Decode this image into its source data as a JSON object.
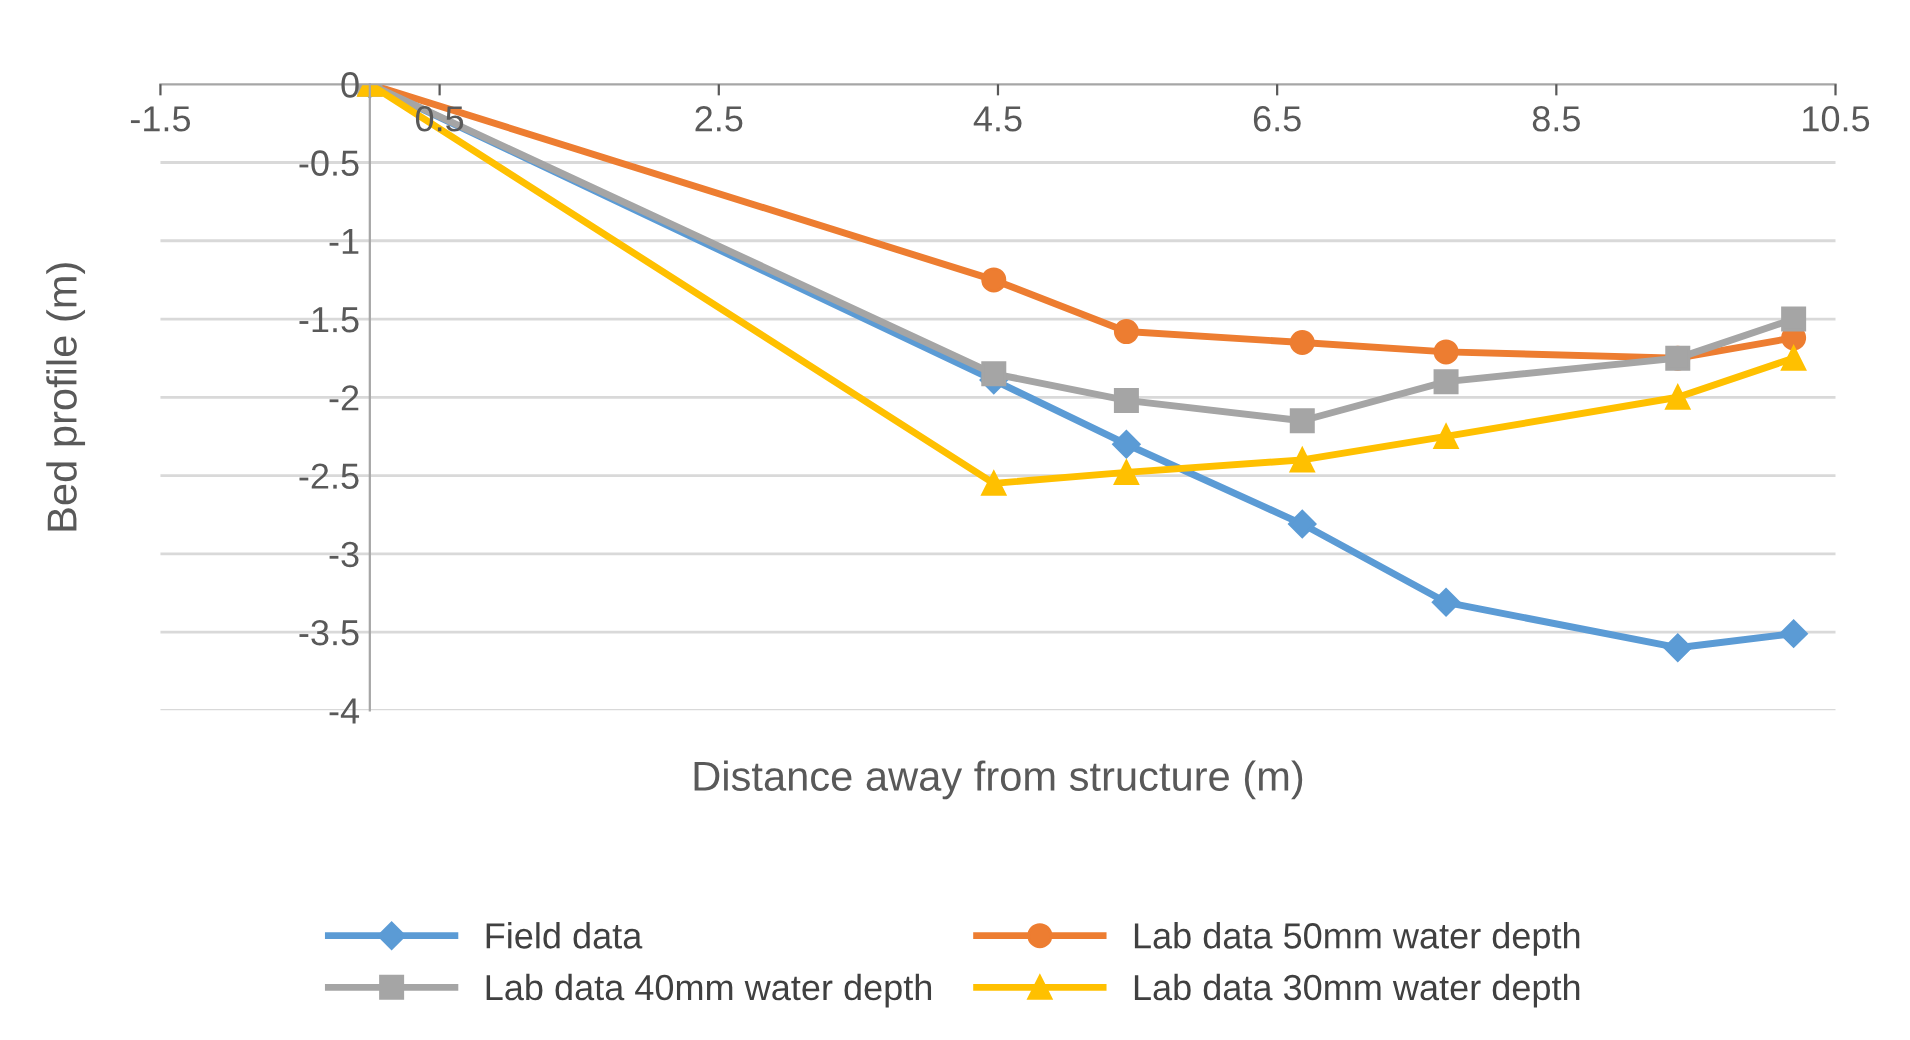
{
  "chart_data": {
    "type": "line",
    "xlabel": "Distance away from structure (m)",
    "ylabel": "Bed profile (m)",
    "xlim": [
      -1.5,
      10.5
    ],
    "xticks": [
      -1.5,
      0.5,
      2.5,
      4.5,
      6.5,
      8.5,
      10.5
    ],
    "ylim": [
      -4,
      0
    ],
    "yticks": [
      0,
      -0.5,
      -1,
      -1.5,
      -2,
      -2.5,
      -3,
      -3.5,
      -4
    ],
    "grid": "y",
    "legend": "bottom",
    "line_style": "solid",
    "x": [
      0,
      4.47,
      5.42,
      6.68,
      7.71,
      9.37,
      10.2
    ],
    "series": [
      {
        "name": "Field data",
        "color": "#5b9bd5",
        "marker": "diamond",
        "values": [
          0,
          -1.89,
          -2.3,
          -2.81,
          -3.31,
          -3.6,
          -3.51
        ]
      },
      {
        "name": "Lab data 50mm water depth",
        "color": "#ed7d31",
        "marker": "circle",
        "values": [
          0,
          -1.25,
          -1.58,
          -1.65,
          -1.71,
          -1.75,
          -1.62
        ]
      },
      {
        "name": "Lab data 40mm water depth",
        "color": "#a5a5a5",
        "marker": "square",
        "values": [
          0,
          -1.85,
          -2.02,
          -2.15,
          -1.9,
          -1.75,
          -1.5
        ]
      },
      {
        "name": "Lab data 30mm water depth",
        "color": "#ffc000",
        "marker": "triangle",
        "values": [
          0,
          -2.55,
          -2.48,
          -2.4,
          -2.25,
          -2.0,
          -1.75
        ]
      }
    ]
  }
}
